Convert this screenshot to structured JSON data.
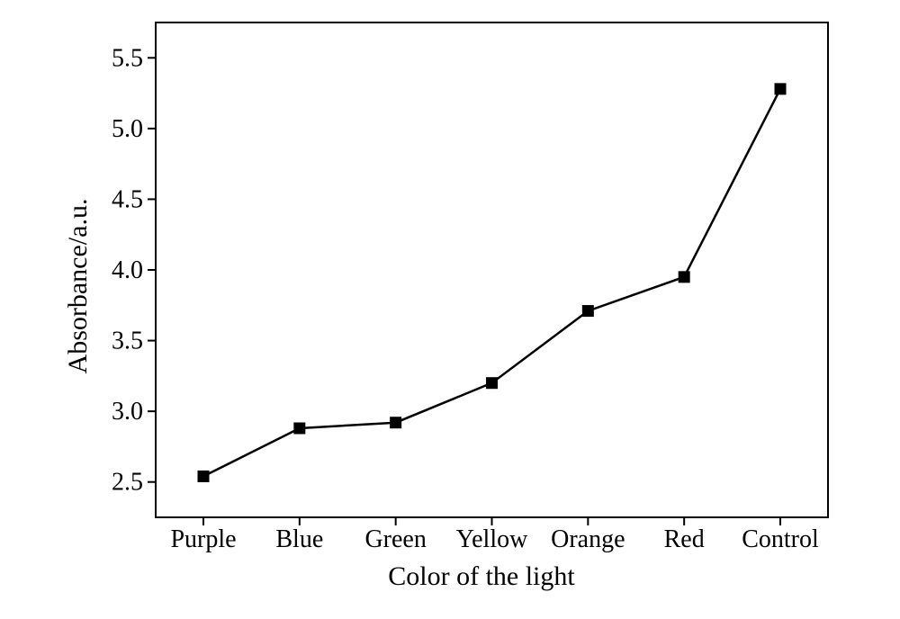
{
  "chart_data": {
    "type": "line",
    "title": "",
    "xlabel": "Color of the light",
    "ylabel": "Absorbance/a.u.",
    "categories": [
      "Purple",
      "Blue",
      "Green",
      "Yellow",
      "Orange",
      "Red",
      "Control"
    ],
    "series": [
      {
        "values": [
          2.54,
          2.88,
          2.92,
          3.2,
          3.71,
          3.95,
          5.28
        ],
        "marker": "square",
        "color": "#000000"
      }
    ],
    "ylim": [
      2.25,
      5.75
    ],
    "yticks": [
      "2.5",
      "3.0",
      "3.5",
      "4.0",
      "4.5",
      "5.0",
      "5.5"
    ],
    "grid": false,
    "legend": "none"
  }
}
